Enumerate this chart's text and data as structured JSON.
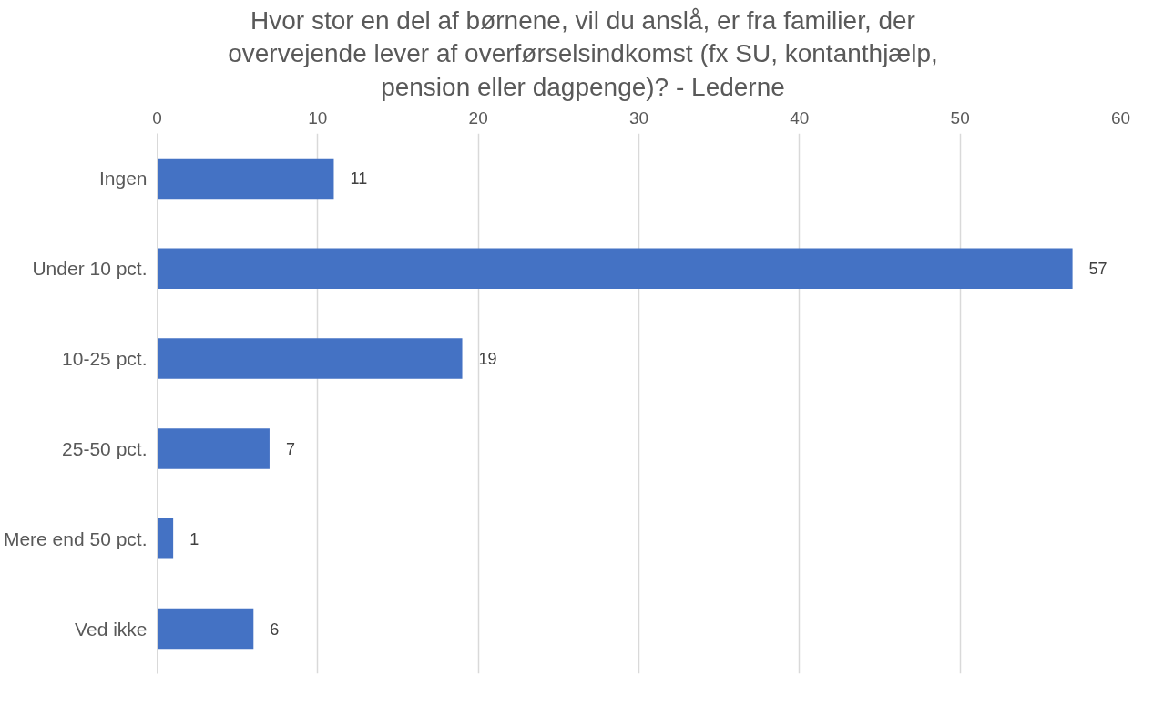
{
  "chart_data": {
    "type": "bar",
    "orientation": "horizontal",
    "title": "Hvor stor en del af børnene, vil du anslå, er fra familier, der overvejende lever af overførselsindkomst (fx SU, kontanthjælp, pension eller dagpenge)? - Lederne",
    "categories": [
      "Ingen",
      "Under 10 pct.",
      "10-25 pct.",
      "25-50 pct.",
      "Mere end 50 pct.",
      "Ved ikke"
    ],
    "values": [
      11,
      57,
      19,
      7,
      1,
      6
    ],
    "color": "#4472c4",
    "xlim": [
      0,
      60
    ],
    "xticks": [
      0,
      10,
      20,
      30,
      40,
      50,
      60
    ],
    "grid": "x",
    "data_labels": true
  }
}
